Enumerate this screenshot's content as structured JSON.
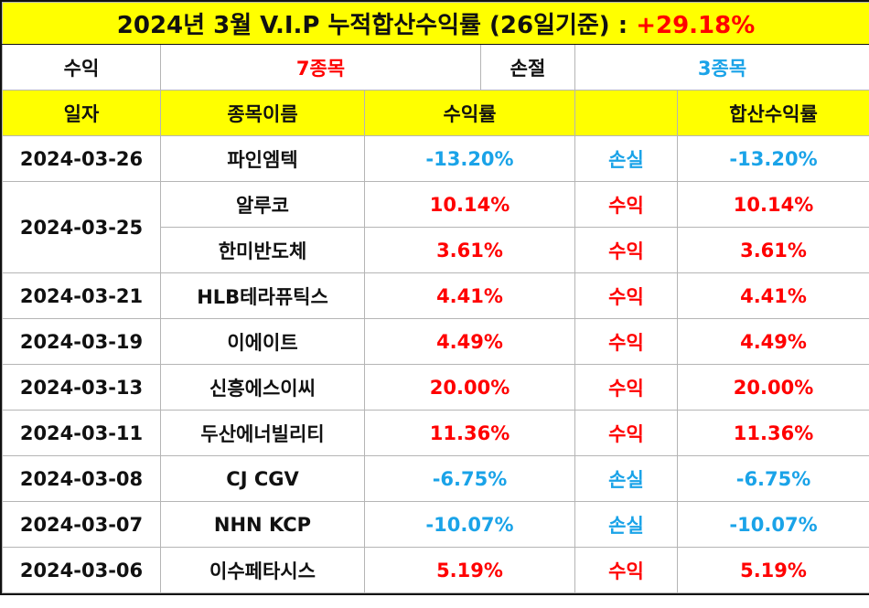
{
  "title": {
    "text": "2024년 3월 V.I.P 누적합산수익률 (26일기준) : ",
    "total": "+29.18%"
  },
  "summary": {
    "profit_label": "수익",
    "profit_count": "7종목",
    "loss_label": "손절",
    "loss_count": "3종목"
  },
  "headers": {
    "date": "일자",
    "name": "종목이름",
    "return": "수익률",
    "result": "",
    "total": "합산수익률"
  },
  "rows": [
    {
      "date": "2024-03-26",
      "name": "파인엠텍",
      "return": "-13.20%",
      "result": "손실",
      "total": "-13.20%",
      "tone": "blue"
    },
    {
      "date": "2024-03-25",
      "name": "알루코",
      "return": "10.14%",
      "result": "수익",
      "total": "10.14%",
      "tone": "red"
    },
    {
      "date": "2024-03-25",
      "name": "한미반도체",
      "return": "3.61%",
      "result": "수익",
      "total": "3.61%",
      "tone": "red"
    },
    {
      "date": "2024-03-21",
      "name": "HLB테라퓨틱스",
      "return": "4.41%",
      "result": "수익",
      "total": "4.41%",
      "tone": "red"
    },
    {
      "date": "2024-03-19",
      "name": "이에이트",
      "return": "4.49%",
      "result": "수익",
      "total": "4.49%",
      "tone": "red"
    },
    {
      "date": "2024-03-13",
      "name": "신흥에스이씨",
      "return": "20.00%",
      "result": "수익",
      "total": "20.00%",
      "tone": "red"
    },
    {
      "date": "2024-03-11",
      "name": "두산에너빌리티",
      "return": "11.36%",
      "result": "수익",
      "total": "11.36%",
      "tone": "red"
    },
    {
      "date": "2024-03-08",
      "name": "CJ CGV",
      "return": "-6.75%",
      "result": "손실",
      "total": "-6.75%",
      "tone": "blue"
    },
    {
      "date": "2024-03-07",
      "name": "NHN KCP",
      "return": "-10.07%",
      "result": "손실",
      "total": "-10.07%",
      "tone": "blue"
    },
    {
      "date": "2024-03-06",
      "name": "이수페타시스",
      "return": "5.19%",
      "result": "수익",
      "total": "5.19%",
      "tone": "red"
    }
  ],
  "colors": {
    "header_bg": "#ffff00",
    "profit": "#ff0000",
    "loss": "#1aa3e8"
  }
}
